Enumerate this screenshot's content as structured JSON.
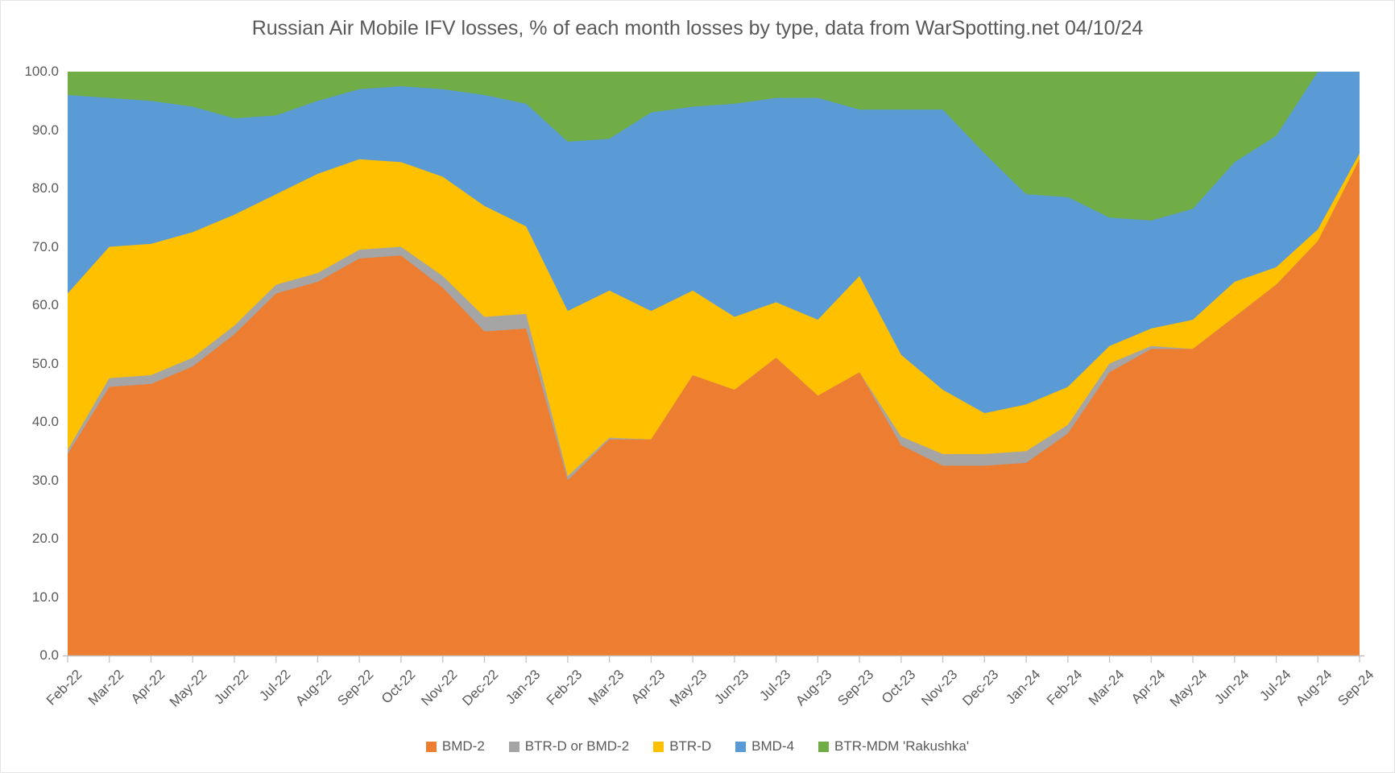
{
  "title": "Russian Air Mobile IFV losses, % of each month losses by type, data from WarSpotting.net 04/10/24",
  "style": {
    "text_color": "#595959",
    "axis_line_color": "#bfbfbf",
    "background": "#ffffff"
  },
  "chart_data": {
    "type": "area",
    "stacking": "percent",
    "title": "Russian Air Mobile IFV losses, % of each month losses by type, data from WarSpotting.net 04/10/24",
    "xlabel": "",
    "ylabel": "",
    "ylim": [
      0,
      100
    ],
    "grid": false,
    "legend_position": "bottom",
    "categories": [
      "Feb-22",
      "Mar-22",
      "Apr-22",
      "May-22",
      "Jun-22",
      "Jul-22",
      "Aug-22",
      "Sep-22",
      "Oct-22",
      "Nov-22",
      "Dec-22",
      "Jan-23",
      "Feb-23",
      "Mar-23",
      "Apr-23",
      "May-23",
      "Jun-23",
      "Jul-23",
      "Aug-23",
      "Sep-23",
      "Oct-23",
      "Nov-23",
      "Dec-23",
      "Jan-24",
      "Feb-24",
      "Mar-24",
      "Apr-24",
      "May-24",
      "Jun-24",
      "Jul-24",
      "Aug-24",
      "Sep-24"
    ],
    "y_axis": {
      "min": 0,
      "max": 100,
      "step": 10,
      "tick_labels": [
        "0.0",
        "10.0",
        "20.0",
        "30.0",
        "40.0",
        "50.0",
        "60.0",
        "70.0",
        "80.0",
        "90.0",
        "100.0"
      ]
    },
    "series": [
      {
        "name": "BMD-2",
        "color": "#ED7D31",
        "values": [
          34.5,
          46,
          46.5,
          49.5,
          55,
          62,
          64,
          68,
          68.5,
          63,
          55.5,
          56,
          30,
          37,
          37,
          48,
          45.5,
          51,
          44.5,
          48.5,
          36,
          32.5,
          32.5,
          33,
          38,
          48.5,
          52.5,
          52.5,
          58,
          63.5,
          71,
          85
        ]
      },
      {
        "name": "BTR-D or BMD-2",
        "color": "#A5A5A5",
        "values": [
          0.7,
          1.5,
          1.5,
          1.5,
          1.5,
          1.5,
          1.5,
          1.5,
          1.5,
          2,
          2.5,
          2.5,
          0.7,
          0.3,
          0,
          0,
          0,
          0,
          0,
          0,
          1.5,
          2,
          2,
          2,
          1.5,
          1.5,
          0.5,
          0,
          0,
          0,
          0,
          0
        ]
      },
      {
        "name": "BTR-D",
        "color": "#FFC000",
        "values": [
          26.8,
          22.5,
          22.5,
          21.5,
          19,
          15.5,
          17,
          15.5,
          14.5,
          17,
          19,
          15,
          28.3,
          25.2,
          22,
          14.5,
          12.5,
          9.5,
          13,
          16.5,
          14,
          11,
          7,
          8,
          6.5,
          3,
          3,
          5,
          6,
          3,
          2,
          1
        ]
      },
      {
        "name": "BMD-4",
        "color": "#5B9BD5",
        "values": [
          34,
          25.5,
          24.5,
          21.5,
          16.5,
          13.5,
          12.5,
          12,
          13,
          15,
          19,
          21,
          29,
          26,
          34,
          31.5,
          36.5,
          35,
          38,
          28.5,
          42,
          48,
          44.5,
          36,
          32.5,
          22,
          18.5,
          19,
          20.5,
          22.5,
          27,
          14
        ]
      },
      {
        "name": "BTR-MDM 'Rakushka'",
        "color": "#70AD47",
        "values": [
          4,
          4.5,
          5,
          6,
          8,
          7.5,
          5,
          3,
          2.5,
          3,
          4,
          5.5,
          12,
          11.5,
          7,
          6,
          5.5,
          4.5,
          4.5,
          6.5,
          6.5,
          6.5,
          14,
          21,
          21.5,
          25,
          25.5,
          23.5,
          15.5,
          11,
          0,
          0
        ]
      }
    ]
  }
}
